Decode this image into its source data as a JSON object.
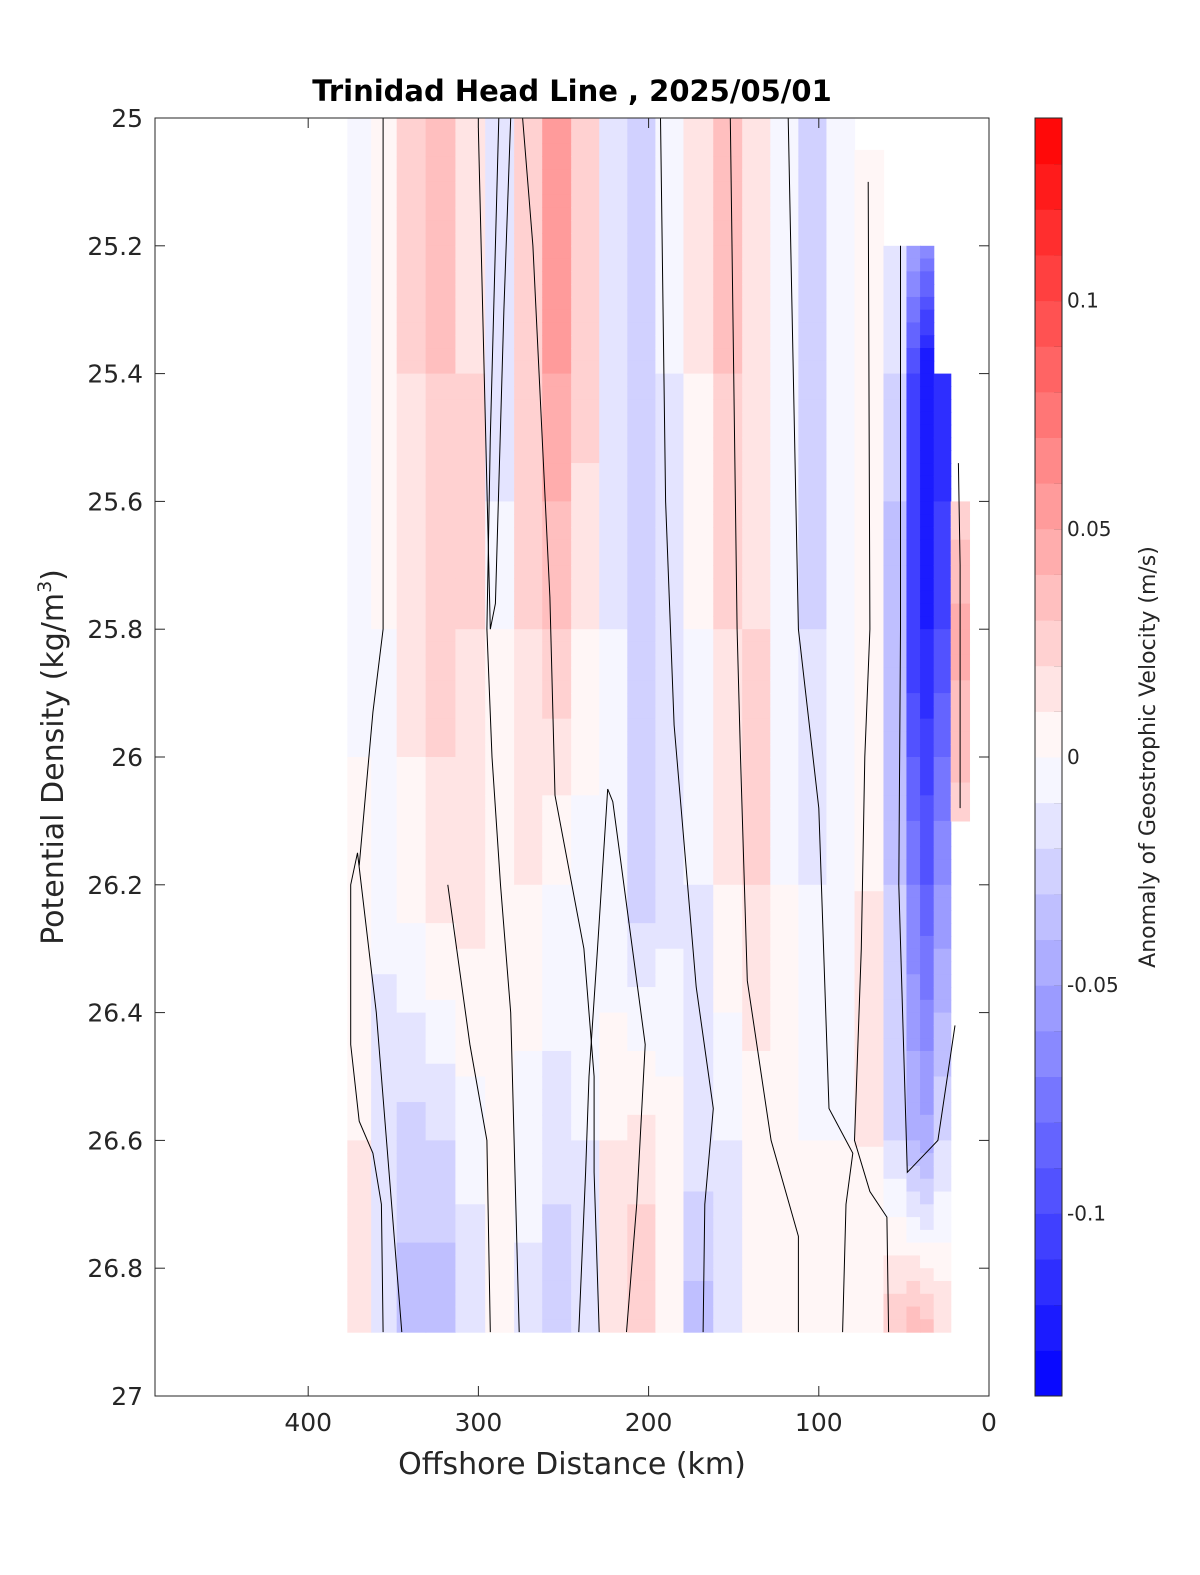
{
  "chart_data": {
    "type": "heatmap",
    "title": "Trinidad Head Line , 2025/05/01",
    "xlabel": "Offshore Distance (km)",
    "ylabel_main": "Potential Density (kg/m",
    "ylabel_sup": "3",
    "ylabel_close": ")",
    "xlim": [
      490,
      0
    ],
    "ylim": [
      25,
      27
    ],
    "x_reversed": true,
    "y_reversed": true,
    "xticks": [
      400,
      300,
      200,
      100,
      0
    ],
    "xtick_labels": [
      "400",
      "300",
      "200",
      "100",
      "0"
    ],
    "yticks": [
      25,
      25.2,
      25.4,
      25.6,
      25.8,
      26,
      26.2,
      26.4,
      26.6,
      26.8,
      27
    ],
    "ytick_labels": [
      "25",
      "25.2",
      "25.4",
      "25.6",
      "25.8",
      "26",
      "26.2",
      "26.4",
      "26.6",
      "26.8",
      "27"
    ],
    "colorbar": {
      "label": "Anomaly of Geostrophic Velocity (m/s)",
      "clim": [
        -0.14,
        0.14
      ],
      "levels": 28,
      "ticks": [
        0.1,
        0.05,
        0,
        -0.05,
        -0.1
      ],
      "tick_labels": [
        "0.1",
        "0.05",
        "0",
        "-0.05",
        "-0.1"
      ],
      "colormap": "blue-white-red",
      "min_color": "#0000ff",
      "max_color": "#ff0000"
    },
    "grid": false,
    "section": {
      "x": [
        370,
        356,
        340,
        322,
        305,
        287,
        271,
        254,
        237,
        221,
        204,
        188,
        171,
        153,
        137,
        120,
        104,
        87,
        71,
        53,
        44,
        37,
        28,
        17
      ],
      "depth_start": [
        25,
        25,
        25,
        25,
        25,
        25,
        25,
        25,
        25,
        25,
        25,
        25,
        25,
        25,
        25,
        25,
        25,
        25,
        25.05,
        25.2,
        25.2,
        25.2,
        25.4,
        25.6
      ],
      "depth_end": [
        26.9,
        26.9,
        26.9,
        26.9,
        26.9,
        26.9,
        26.9,
        26.9,
        26.9,
        26.9,
        26.9,
        26.9,
        26.9,
        26.9,
        26.9,
        26.9,
        26.9,
        26.9,
        26.9,
        26.9,
        26.9,
        26.9,
        26.9,
        26.1
      ],
      "sigma": [
        25.0,
        25.4,
        25.8,
        26.2,
        26.6,
        26.9
      ],
      "values": [
        [
          -0.01,
          -0.01,
          -0.005,
          0.005,
          0.01,
          0.01
        ],
        [
          0.005,
          0.005,
          0.0,
          -0.005,
          -0.02,
          -0.02
        ],
        [
          0.025,
          0.02,
          0.015,
          0.005,
          -0.025,
          -0.035
        ],
        [
          0.035,
          0.03,
          0.025,
          0.015,
          -0.02,
          -0.04
        ],
        [
          0.015,
          0.02,
          0.02,
          0.015,
          -0.005,
          -0.02
        ],
        [
          -0.015,
          -0.02,
          0.0,
          0.005,
          0.0,
          0.0
        ],
        [
          0.03,
          0.025,
          0.02,
          0.01,
          -0.005,
          -0.015
        ],
        [
          0.06,
          0.05,
          0.03,
          0.0,
          -0.015,
          -0.03
        ],
        [
          0.03,
          0.025,
          0.01,
          -0.005,
          -0.01,
          -0.015
        ],
        [
          -0.02,
          -0.015,
          -0.01,
          -0.01,
          0.01,
          0.01
        ],
        [
          -0.03,
          -0.03,
          -0.03,
          -0.025,
          0.015,
          0.03
        ],
        [
          -0.01,
          -0.01,
          -0.015,
          -0.015,
          0.005,
          0.01
        ],
        [
          0.01,
          0.01,
          0.0,
          -0.01,
          -0.015,
          -0.035
        ],
        [
          0.035,
          0.03,
          0.02,
          0.01,
          -0.01,
          -0.02
        ],
        [
          0.02,
          0.015,
          0.02,
          0.02,
          0.005,
          0.0
        ],
        [
          -0.005,
          -0.01,
          -0.005,
          0.0,
          0.0,
          0.0
        ],
        [
          -0.03,
          -0.025,
          -0.02,
          -0.01,
          0.0,
          0.005
        ],
        [
          -0.01,
          -0.01,
          -0.01,
          -0.005,
          0.0,
          0.0
        ],
        [
          0.0,
          0.005,
          0.005,
          0.01,
          0.01,
          0.0
        ],
        [
          0.0,
          -0.02,
          -0.04,
          -0.03,
          -0.02,
          0.03
        ],
        [
          0.0,
          -0.1,
          -0.11,
          -0.07,
          -0.04,
          0.04
        ],
        [
          0.0,
          -0.13,
          -0.12,
          -0.09,
          -0.045,
          0.035
        ],
        [
          0.0,
          -0.12,
          -0.1,
          -0.06,
          -0.02,
          0.02
        ],
        [
          0.0,
          0.0,
          0.045,
          0.02,
          0.0,
          0.0
        ]
      ]
    },
    "contours_zero": [
      [
        [
          370,
          26.17
        ],
        [
          362,
          25.93
        ],
        [
          356,
          25.8
        ],
        [
          356,
          25.0
        ]
      ],
      [
        [
          356,
          26.9
        ],
        [
          357,
          26.7
        ],
        [
          362,
          26.62
        ],
        [
          370,
          26.57
        ],
        [
          375,
          26.45
        ],
        [
          375,
          26.2
        ],
        [
          371,
          26.15
        ],
        [
          360,
          26.4
        ],
        [
          345,
          26.9
        ]
      ],
      [
        [
          300,
          25.0
        ],
        [
          300,
          25.02
        ],
        [
          293,
          25.8
        ],
        [
          290,
          25.76
        ],
        [
          285,
          25.3
        ],
        [
          281,
          25.0
        ]
      ],
      [
        [
          293,
          26.9
        ],
        [
          295,
          26.6
        ],
        [
          305,
          26.45
        ],
        [
          318,
          26.2
        ]
      ],
      [
        [
          276,
          26.9
        ],
        [
          281,
          26.4
        ],
        [
          287,
          26.2
        ],
        [
          292,
          26.0
        ],
        [
          295,
          25.8
        ],
        [
          293,
          25.5
        ],
        [
          288,
          25.0
        ]
      ],
      [
        [
          229,
          26.9
        ],
        [
          232,
          26.65
        ],
        [
          232,
          26.5
        ],
        [
          238,
          26.3
        ],
        [
          255,
          26.06
        ],
        [
          258,
          25.75
        ],
        [
          268,
          25.2
        ],
        [
          274,
          25.0
        ]
      ],
      [
        [
          213,
          26.9
        ],
        [
          207,
          26.7
        ],
        [
          202,
          26.45
        ],
        [
          221,
          26.07
        ],
        [
          224,
          26.05
        ],
        [
          230,
          26.3
        ],
        [
          235,
          26.5
        ],
        [
          237,
          26.65
        ],
        [
          241,
          26.9
        ]
      ],
      [
        [
          168,
          26.9
        ],
        [
          167,
          26.7
        ],
        [
          162,
          26.55
        ],
        [
          172,
          26.36
        ],
        [
          185,
          25.95
        ],
        [
          190,
          25.6
        ],
        [
          193,
          25.0
        ]
      ],
      [
        [
          112,
          26.9
        ],
        [
          112,
          26.75
        ],
        [
          128,
          26.6
        ],
        [
          142,
          26.35
        ],
        [
          146,
          26.0
        ],
        [
          148,
          25.8
        ],
        [
          152,
          25.0
        ]
      ],
      [
        [
          86,
          26.9
        ],
        [
          84,
          26.7
        ],
        [
          80,
          26.62
        ],
        [
          94,
          26.55
        ],
        [
          100,
          26.08
        ],
        [
          112,
          25.8
        ],
        [
          118,
          25.0
        ]
      ],
      [
        [
          59,
          26.9
        ],
        [
          60,
          26.72
        ],
        [
          70,
          26.68
        ],
        [
          79,
          26.6
        ],
        [
          75,
          26.3
        ],
        [
          73,
          26.0
        ],
        [
          70,
          25.8
        ],
        [
          71,
          25.1
        ]
      ],
      [
        [
          20,
          26.42
        ],
        [
          30,
          26.6
        ],
        [
          48,
          26.65
        ],
        [
          53,
          26.2
        ],
        [
          52,
          25.8
        ],
        [
          52,
          25.2
        ]
      ],
      [
        [
          18,
          25.54
        ],
        [
          17,
          25.7
        ],
        [
          17,
          26.08
        ]
      ]
    ]
  }
}
